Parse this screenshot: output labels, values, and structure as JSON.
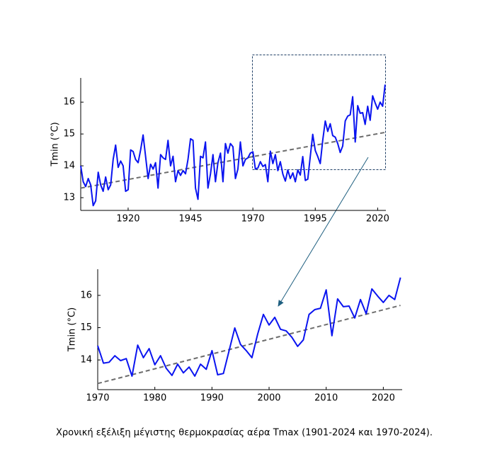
{
  "chart_data": [
    {
      "type": "line",
      "y_label": "Tmin (°C)",
      "x": [
        1901,
        1902,
        1903,
        1904,
        1905,
        1906,
        1907,
        1908,
        1909,
        1910,
        1911,
        1912,
        1913,
        1914,
        1915,
        1916,
        1917,
        1918,
        1919,
        1920,
        1921,
        1922,
        1923,
        1924,
        1925,
        1926,
        1927,
        1928,
        1929,
        1930,
        1931,
        1932,
        1933,
        1934,
        1935,
        1936,
        1937,
        1938,
        1939,
        1940,
        1941,
        1942,
        1943,
        1944,
        1945,
        1946,
        1947,
        1948,
        1949,
        1950,
        1951,
        1952,
        1953,
        1954,
        1955,
        1956,
        1957,
        1958,
        1959,
        1960,
        1961,
        1962,
        1963,
        1964,
        1965,
        1966,
        1967,
        1968,
        1969,
        1970,
        1971,
        1972,
        1973,
        1974,
        1975,
        1976,
        1977,
        1978,
        1979,
        1980,
        1981,
        1982,
        1983,
        1984,
        1985,
        1986,
        1987,
        1988,
        1989,
        1990,
        1991,
        1992,
        1993,
        1994,
        1995,
        1996,
        1997,
        1998,
        1999,
        2000,
        2001,
        2002,
        2003,
        2004,
        2005,
        2006,
        2007,
        2008,
        2009,
        2010,
        2011,
        2012,
        2013,
        2014,
        2015,
        2016,
        2017,
        2018,
        2019,
        2020,
        2021,
        2022,
        2023
      ],
      "series": [
        {
          "color": "#0a14f0",
          "values": [
            14.0,
            13.5,
            13.35,
            13.6,
            13.4,
            12.75,
            12.9,
            13.8,
            13.4,
            13.2,
            13.65,
            13.25,
            13.4,
            14.2,
            14.65,
            13.95,
            14.15,
            14.0,
            13.2,
            13.25,
            14.5,
            14.45,
            14.2,
            14.1,
            14.5,
            14.97,
            14.3,
            13.6,
            14.05,
            13.9,
            14.1,
            13.3,
            14.35,
            14.25,
            14.2,
            14.8,
            14.0,
            14.3,
            13.5,
            13.85,
            13.7,
            13.85,
            13.75,
            14.2,
            14.85,
            14.8,
            13.3,
            12.95,
            14.3,
            14.25,
            14.75,
            13.3,
            13.75,
            14.35,
            13.5,
            14.1,
            14.4,
            13.5,
            14.7,
            14.4,
            14.7,
            14.6,
            13.6,
            13.9,
            14.75,
            14.0,
            14.2,
            14.25,
            14.4,
            14.44,
            13.9,
            13.93,
            14.13,
            13.98,
            14.04,
            13.5,
            14.46,
            14.07,
            14.35,
            13.85,
            14.13,
            13.74,
            13.52,
            13.87,
            13.6,
            13.78,
            13.5,
            13.87,
            13.71,
            14.29,
            13.54,
            13.58,
            14.29,
            14.99,
            14.48,
            14.29,
            14.07,
            14.8,
            15.41,
            15.08,
            15.32,
            14.95,
            14.9,
            14.7,
            14.42,
            14.62,
            15.41,
            15.56,
            15.6,
            16.17,
            14.75,
            15.89,
            15.65,
            15.67,
            15.3,
            15.87,
            15.43,
            16.2,
            15.98,
            15.78,
            16.0,
            15.87,
            16.55
          ]
        }
      ],
      "trend": {
        "x": [
          1901,
          2023
        ],
        "values": [
          13.3,
          15.05
        ],
        "color": "#6e6e6e"
      },
      "xlim": [
        1901,
        2023.3
      ],
      "ylim": [
        12.6,
        16.76
      ],
      "xticks": [
        1920,
        1945,
        1970,
        1995,
        2020
      ],
      "yticks": [
        13,
        14,
        15,
        16
      ]
    },
    {
      "type": "line",
      "y_label": "Tmin (°C)",
      "x": [
        1970,
        1971,
        1972,
        1973,
        1974,
        1975,
        1976,
        1977,
        1978,
        1979,
        1980,
        1981,
        1982,
        1983,
        1984,
        1985,
        1986,
        1987,
        1988,
        1989,
        1990,
        1991,
        1992,
        1993,
        1994,
        1995,
        1996,
        1997,
        1998,
        1999,
        2000,
        2001,
        2002,
        2003,
        2004,
        2005,
        2006,
        2007,
        2008,
        2009,
        2010,
        2011,
        2012,
        2013,
        2014,
        2015,
        2016,
        2017,
        2018,
        2019,
        2020,
        2021,
        2022,
        2023
      ],
      "series": [
        {
          "color": "#0a14f0",
          "values": [
            14.44,
            13.9,
            13.93,
            14.13,
            13.98,
            14.04,
            13.5,
            14.46,
            14.07,
            14.35,
            13.85,
            14.13,
            13.74,
            13.52,
            13.87,
            13.6,
            13.78,
            13.5,
            13.87,
            13.71,
            14.29,
            13.54,
            13.58,
            14.29,
            14.99,
            14.48,
            14.29,
            14.07,
            14.8,
            15.41,
            15.08,
            15.32,
            14.95,
            14.9,
            14.7,
            14.42,
            14.62,
            15.41,
            15.56,
            15.6,
            16.17,
            14.75,
            15.89,
            15.65,
            15.67,
            15.3,
            15.87,
            15.43,
            16.2,
            15.98,
            15.78,
            16.0,
            15.87,
            16.55
          ]
        }
      ],
      "trend": {
        "x": [
          1970,
          2023
        ],
        "values": [
          13.27,
          15.69
        ],
        "color": "#6e6e6e"
      },
      "xlim": [
        1970,
        2023.3
      ],
      "ylim": [
        13.08,
        16.81
      ],
      "xticks": [
        1970,
        1980,
        1990,
        2000,
        2010,
        2020
      ],
      "yticks": [
        14,
        15,
        16
      ]
    }
  ],
  "caption": "Χρονική εξέλιξη μέγιστης θερμοκρασίας αέρα Tmax (1901-2024 και 1970-2024)."
}
